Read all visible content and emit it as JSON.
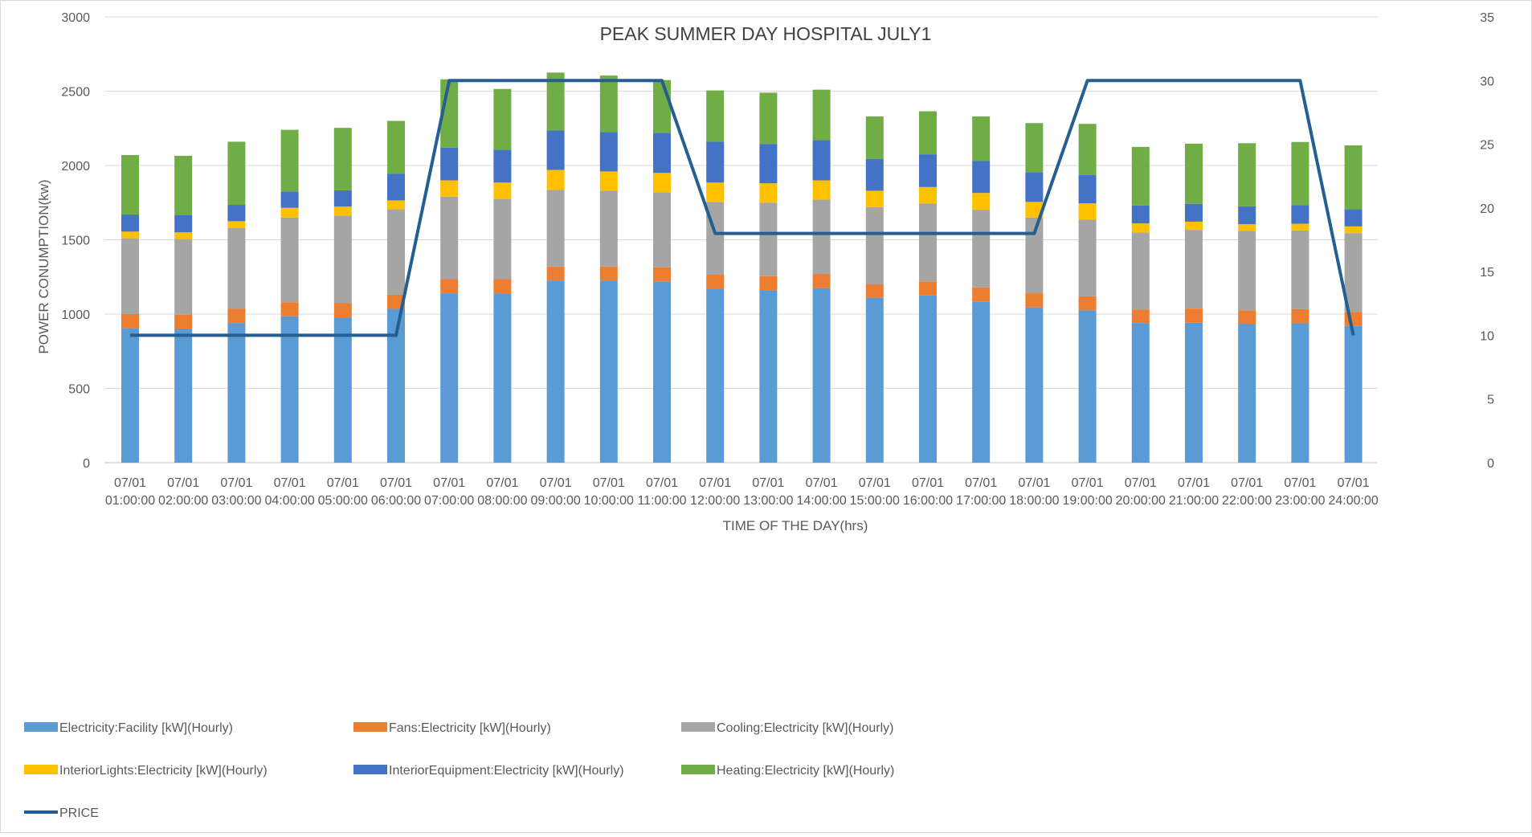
{
  "chart_data": {
    "type": "bar",
    "title": "PEAK SUMMER DAY HOSPITAL JULY1",
    "xlabel": "TIME OF THE DAY(hrs)",
    "ylabel": "POWER CONUMPTION(kw)",
    "ylim": [
      0,
      3000
    ],
    "yticks": [
      "0",
      "500",
      "1000",
      "1500",
      "2000",
      "2500",
      "3000"
    ],
    "y2lim": [
      0,
      35
    ],
    "y2ticks": [
      "0",
      "5",
      "10",
      "15",
      "20",
      "25",
      "30",
      "35"
    ],
    "grid": true,
    "legend_position": "bottom",
    "stacked": true,
    "categories": [
      [
        "07/01",
        "01:00:00"
      ],
      [
        "07/01",
        "02:00:00"
      ],
      [
        "07/01",
        "03:00:00"
      ],
      [
        "07/01",
        "04:00:00"
      ],
      [
        "07/01",
        "05:00:00"
      ],
      [
        "07/01",
        "06:00:00"
      ],
      [
        "07/01",
        "07:00:00"
      ],
      [
        "07/01",
        "08:00:00"
      ],
      [
        "07/01",
        "09:00:00"
      ],
      [
        "07/01",
        "10:00:00"
      ],
      [
        "07/01",
        "11:00:00"
      ],
      [
        "07/01",
        "12:00:00"
      ],
      [
        "07/01",
        "13:00:00"
      ],
      [
        "07/01",
        "14:00:00"
      ],
      [
        "07/01",
        "15:00:00"
      ],
      [
        "07/01",
        "16:00:00"
      ],
      [
        "07/01",
        "17:00:00"
      ],
      [
        "07/01",
        "18:00:00"
      ],
      [
        "07/01",
        "19:00:00"
      ],
      [
        "07/01",
        "20:00:00"
      ],
      [
        "07/01",
        "21:00:00"
      ],
      [
        "07/01",
        "22:00:00"
      ],
      [
        "07/01",
        "23:00:00"
      ],
      [
        "07/01",
        "24:00:00"
      ]
    ],
    "series": [
      {
        "name": "Electricity:Facility [kW](Hourly)",
        "color": "#5B9BD5",
        "axis": "left",
        "values": [
          905,
          900,
          940,
          985,
          978,
          1035,
          1140,
          1140,
          1225,
          1225,
          1220,
          1170,
          1160,
          1175,
          1110,
          1125,
          1085,
          1045,
          1025,
          940,
          942,
          935,
          938,
          920
        ]
      },
      {
        "name": "Fans:Electricity [kW](Hourly)",
        "color": "#ED7D31",
        "axis": "left",
        "values": [
          95,
          95,
          95,
          95,
          95,
          95,
          95,
          95,
          95,
          95,
          95,
          95,
          95,
          95,
          90,
          95,
          95,
          95,
          95,
          90,
          95,
          90,
          95,
          95
        ]
      },
      {
        "name": "Cooling:Electricity [kW](Hourly)",
        "color": "#A5A5A5",
        "axis": "left",
        "values": [
          510,
          510,
          545,
          570,
          590,
          575,
          555,
          540,
          515,
          510,
          505,
          490,
          495,
          500,
          520,
          525,
          520,
          510,
          515,
          520,
          530,
          535,
          530,
          530
        ]
      },
      {
        "name": "InteriorLights:Electricity [kW](Hourly)",
        "color": "#FFC000",
        "axis": "left",
        "values": [
          45,
          45,
          45,
          65,
          60,
          60,
          110,
          110,
          135,
          130,
          130,
          130,
          130,
          130,
          110,
          110,
          115,
          105,
          110,
          60,
          55,
          45,
          45,
          45
        ]
      },
      {
        "name": "InteriorEquipment:Electricity [kW](Hourly)",
        "color": "#4472C4",
        "axis": "left",
        "values": [
          115,
          115,
          110,
          110,
          110,
          180,
          220,
          220,
          265,
          265,
          270,
          275,
          265,
          270,
          215,
          220,
          215,
          200,
          190,
          120,
          120,
          120,
          125,
          115
        ]
      },
      {
        "name": "Heating:Electricity [kW](Hourly)",
        "color": "#70AD47",
        "axis": "left",
        "values": [
          400,
          400,
          425,
          415,
          420,
          355,
          460,
          410,
          390,
          380,
          355,
          345,
          345,
          340,
          285,
          290,
          300,
          330,
          345,
          395,
          405,
          425,
          425,
          430
        ]
      },
      {
        "name": "PRICE",
        "color": "#255E91",
        "type": "line",
        "axis": "right",
        "values": [
          10,
          10,
          10,
          10,
          10,
          10,
          30,
          30,
          30,
          30,
          30,
          18,
          18,
          18,
          18,
          18,
          18,
          18,
          30,
          30,
          30,
          30,
          30,
          10
        ]
      }
    ]
  }
}
